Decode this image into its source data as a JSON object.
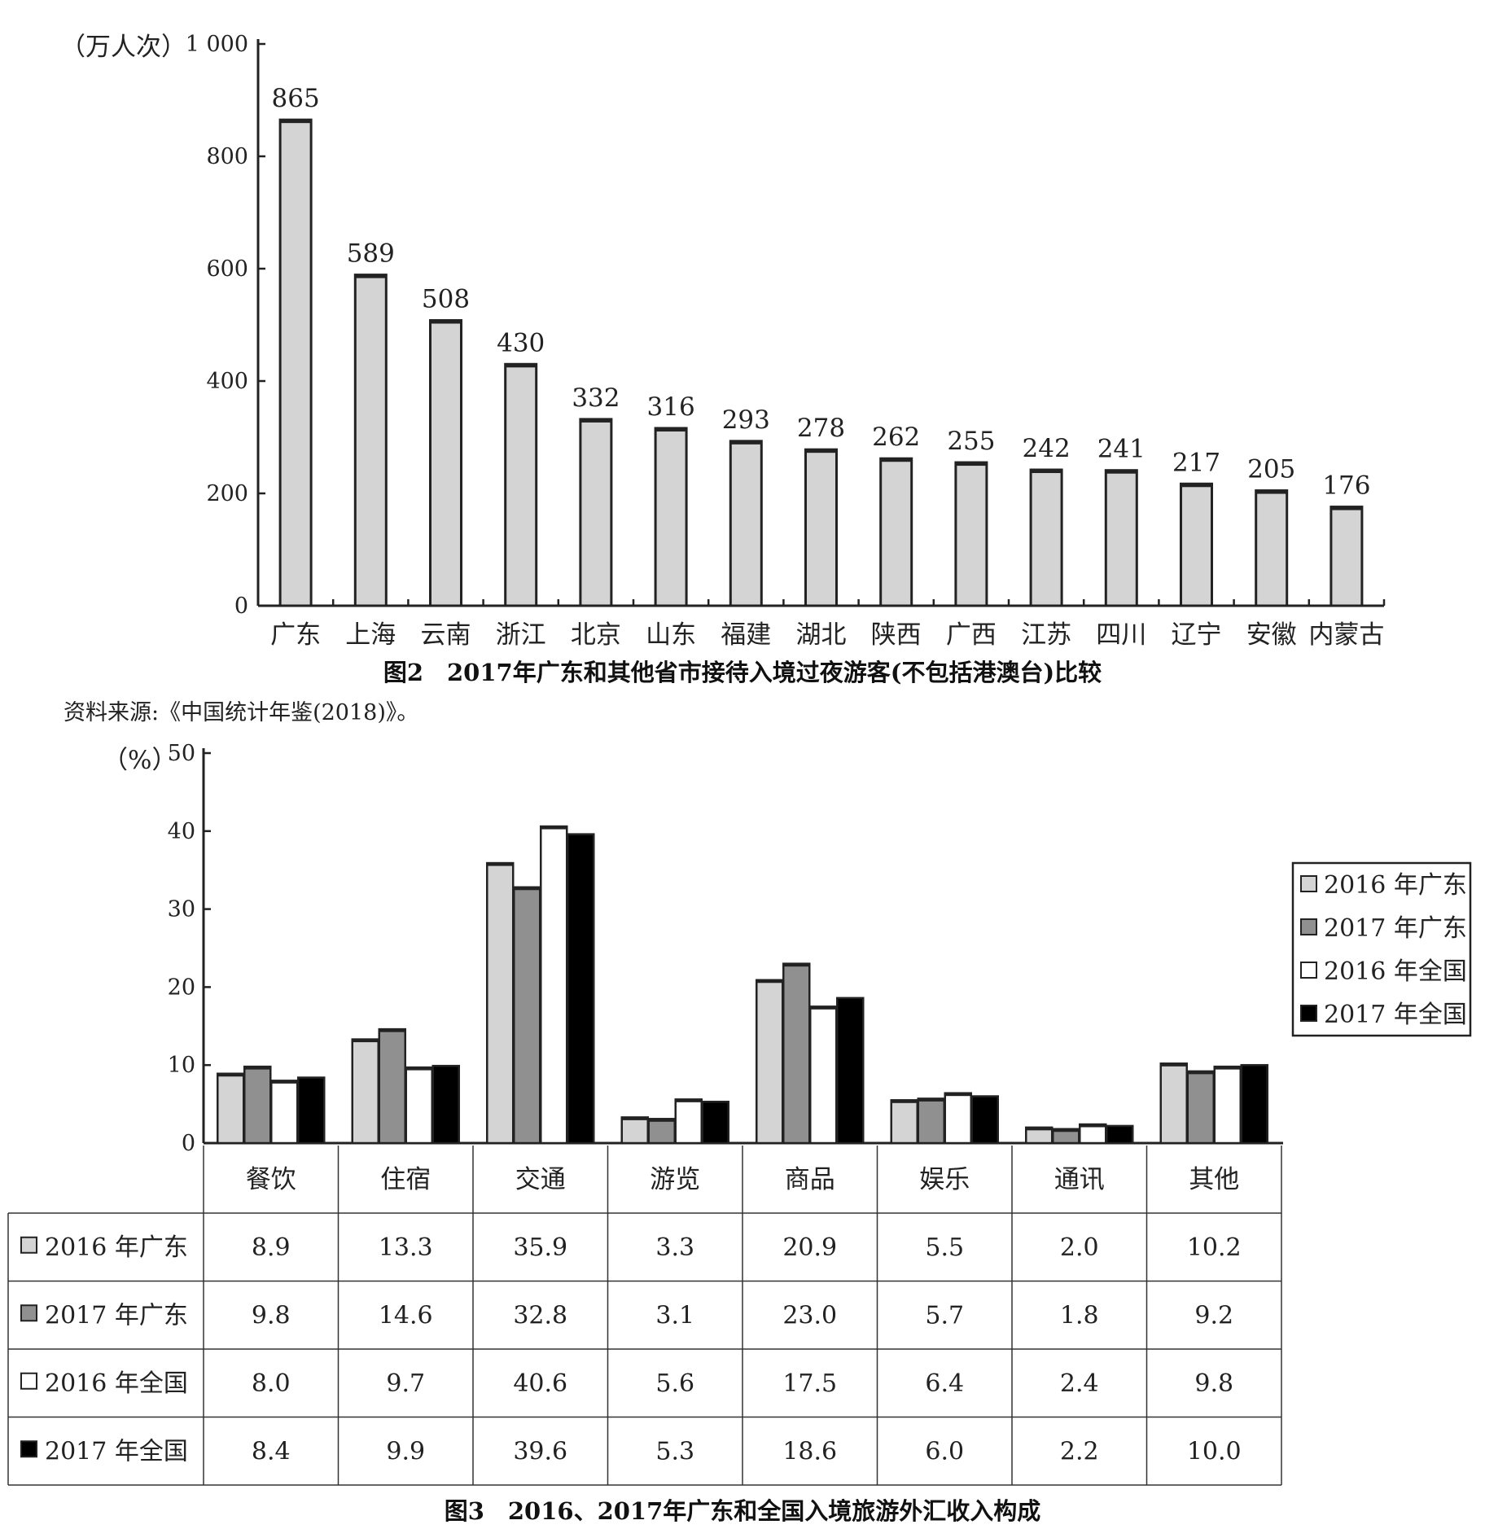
{
  "chart_data": [
    {
      "type": "bar",
      "unit_label": "（万人次）",
      "ylim": [
        0,
        1000
      ],
      "yticks": [
        0,
        200,
        400,
        600,
        800,
        1000
      ],
      "ytick_labels": [
        "0",
        "200",
        "400",
        "600",
        "800",
        "1 000"
      ],
      "categories": [
        "广东",
        "上海",
        "云南",
        "浙江",
        "北京",
        "山东",
        "福建",
        "湖北",
        "陕西",
        "广西",
        "江苏",
        "四川",
        "辽宁",
        "安徽",
        "内蒙古"
      ],
      "values": [
        865,
        589,
        508,
        430,
        332,
        316,
        293,
        278,
        262,
        255,
        242,
        241,
        217,
        205,
        176
      ],
      "bar_color": "#d4d4d4",
      "caption": "图2　2017年广东和其他省市接待入境过夜游客(不包括港澳台)比较",
      "source": "资料来源:《中国统计年鉴(2018)》。"
    },
    {
      "type": "bar",
      "unit_label": "（%）",
      "ylim": [
        0,
        50
      ],
      "yticks": [
        0,
        10,
        20,
        30,
        40,
        50
      ],
      "categories": [
        "餐饮",
        "住宿",
        "交通",
        "游览",
        "商品",
        "娱乐",
        "通讯",
        "其他"
      ],
      "series": [
        {
          "name": "2016 年广东",
          "color": "#d4d4d4",
          "values": [
            8.9,
            13.3,
            35.9,
            3.3,
            20.9,
            5.5,
            2.0,
            10.2
          ]
        },
        {
          "name": "2017 年广东",
          "color": "#909090",
          "values": [
            9.8,
            14.6,
            32.8,
            3.1,
            23.0,
            5.7,
            1.8,
            9.2
          ]
        },
        {
          "name": "2016 年全国",
          "color": "#ffffff",
          "values": [
            8.0,
            9.7,
            40.6,
            5.6,
            17.5,
            6.4,
            2.4,
            9.8
          ]
        },
        {
          "name": "2017 年全国",
          "color": "#000000",
          "values": [
            8.4,
            9.9,
            39.6,
            5.3,
            18.6,
            6.0,
            2.2,
            10.0
          ]
        }
      ],
      "table_values": [
        [
          "8.9",
          "13.3",
          "35.9",
          "3.3",
          "20.9",
          "5.5",
          "2.0",
          "10.2"
        ],
        [
          "9.8",
          "14.6",
          "32.8",
          "3.1",
          "23.0",
          "5.7",
          "1.8",
          "9.2"
        ],
        [
          "8.0",
          "9.7",
          "40.6",
          "5.6",
          "17.5",
          "6.4",
          "2.4",
          "9.8"
        ],
        [
          "8.4",
          "9.9",
          "39.6",
          "5.3",
          "18.6",
          "6.0",
          "2.2",
          "10.0"
        ]
      ],
      "legend_position": "right",
      "caption": "图3　2016、2017年广东和全国入境旅游外汇收入构成"
    }
  ]
}
